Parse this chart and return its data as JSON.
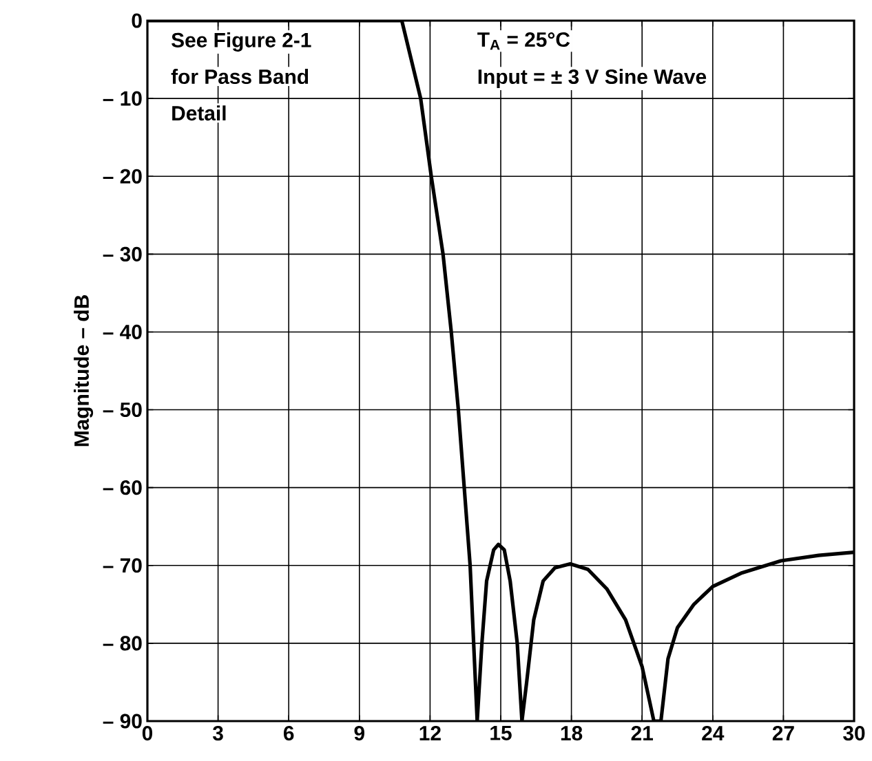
{
  "chart_data": {
    "type": "line",
    "ylabel": "Magnitude – dB",
    "xlim": [
      0,
      30
    ],
    "ylim": [
      -90,
      0
    ],
    "xticks": [
      0,
      3,
      6,
      9,
      12,
      15,
      18,
      21,
      24,
      27,
      30
    ],
    "yticks": [
      {
        "value": -90,
        "label": "– 90"
      },
      {
        "value": -80,
        "label": "– 80"
      },
      {
        "value": -70,
        "label": "– 70"
      },
      {
        "value": -60,
        "label": "– 60"
      },
      {
        "value": -50,
        "label": "– 50"
      },
      {
        "value": -40,
        "label": "– 40"
      },
      {
        "value": -30,
        "label": "– 30"
      },
      {
        "value": -20,
        "label": "– 20"
      },
      {
        "value": -10,
        "label": "– 10"
      },
      0
    ],
    "grid": true,
    "annotations": [
      "See Figure 2-1",
      "for Pass Band",
      "Detail",
      "T$_{A}$ = 25°C",
      "Input = ± 3 V Sine Wave"
    ],
    "series": [
      {
        "color": "#000000",
        "x": [
          0,
          10.8,
          11.6,
          12.05,
          12.55,
          12.9,
          13.2,
          13.45,
          13.7,
          13.85,
          14.0,
          14.2,
          14.4,
          14.7,
          14.9,
          15.15,
          15.4,
          15.7,
          15.9,
          16.1,
          16.4,
          16.8,
          17.3,
          17.95,
          18.7,
          19.5,
          20.3,
          21.0,
          21.5,
          21.8,
          22.1,
          22.5,
          23.2,
          24.0,
          25.2,
          26.9,
          28.5,
          30
        ],
        "values": [
          0,
          0,
          -10,
          -20,
          -30,
          -40,
          -50,
          -60,
          -70,
          -80,
          -90,
          -80,
          -72,
          -68,
          -67.3,
          -68,
          -72,
          -80,
          -90,
          -85,
          -77,
          -72,
          -70.3,
          -69.8,
          -70.5,
          -73,
          -77,
          -83,
          -90,
          -90,
          -82,
          -78,
          -75,
          -72.7,
          -71,
          -69.4,
          -68.7,
          -68.3
        ]
      }
    ]
  }
}
